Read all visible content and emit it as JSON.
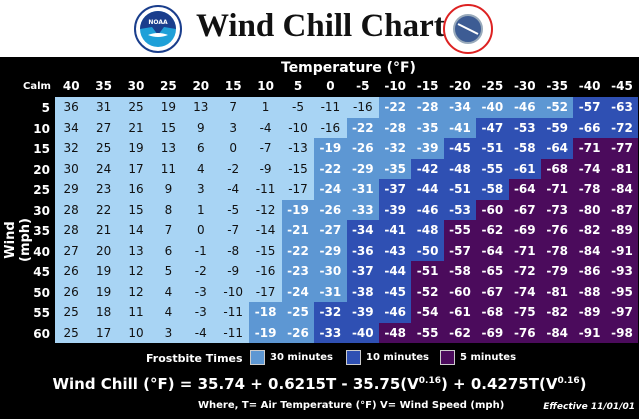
{
  "header": {
    "title": "Wind Chill Chart",
    "logos": [
      "NOAA",
      "National Weather Service"
    ]
  },
  "chart_data": {
    "type": "table",
    "title": "Temperature (°F)",
    "xlabel": "Temperature (°F)",
    "ylabel": "Wind (mph)",
    "corner_label": "Calm",
    "temperatures": [
      40,
      35,
      30,
      25,
      20,
      15,
      10,
      5,
      0,
      -5,
      -10,
      -15,
      -20,
      -25,
      -30,
      -35,
      -40,
      -45
    ],
    "winds": [
      5,
      10,
      15,
      20,
      25,
      30,
      35,
      40,
      45,
      50,
      55,
      60
    ],
    "values": [
      [
        36,
        31,
        25,
        19,
        13,
        7,
        1,
        -5,
        -11,
        -16,
        -22,
        -28,
        -34,
        -40,
        -46,
        -52,
        -57,
        -63
      ],
      [
        34,
        27,
        21,
        15,
        9,
        3,
        -4,
        -10,
        -16,
        -22,
        -28,
        -35,
        -41,
        -47,
        -53,
        -59,
        -66,
        -72
      ],
      [
        32,
        25,
        19,
        13,
        6,
        0,
        -7,
        -13,
        -19,
        -26,
        -32,
        -39,
        -45,
        -51,
        -58,
        -64,
        -71,
        -77
      ],
      [
        30,
        24,
        17,
        11,
        4,
        -2,
        -9,
        -15,
        -22,
        -29,
        -35,
        -42,
        -48,
        -55,
        -61,
        -68,
        -74,
        -81
      ],
      [
        29,
        23,
        16,
        9,
        3,
        -4,
        -11,
        -17,
        -24,
        -31,
        -37,
        -44,
        -51,
        -58,
        -64,
        -71,
        -78,
        -84
      ],
      [
        28,
        22,
        15,
        8,
        1,
        -5,
        -12,
        -19,
        -26,
        -33,
        -39,
        -46,
        -53,
        -60,
        -67,
        -73,
        -80,
        -87
      ],
      [
        28,
        21,
        14,
        7,
        0,
        -7,
        -14,
        -21,
        -27,
        -34,
        -41,
        -48,
        -55,
        -62,
        -69,
        -76,
        -82,
        -89
      ],
      [
        27,
        20,
        13,
        6,
        -1,
        -8,
        -15,
        -22,
        -29,
        -36,
        -43,
        -50,
        -57,
        -64,
        -71,
        -78,
        -84,
        -91
      ],
      [
        26,
        19,
        12,
        5,
        -2,
        -9,
        -16,
        -23,
        -30,
        -37,
        -44,
        -51,
        -58,
        -65,
        -72,
        -79,
        -86,
        -93
      ],
      [
        26,
        19,
        12,
        4,
        -3,
        -10,
        -17,
        -24,
        -31,
        -38,
        -45,
        -52,
        -60,
        -67,
        -74,
        -81,
        -88,
        -95
      ],
      [
        25,
        18,
        11,
        4,
        -3,
        -11,
        -18,
        -25,
        -32,
        -39,
        -46,
        -54,
        -61,
        -68,
        -75,
        -82,
        -89,
        -97
      ],
      [
        25,
        17,
        10,
        3,
        -4,
        -11,
        -19,
        -26,
        -33,
        -40,
        -48,
        -55,
        -62,
        -69,
        -76,
        -84,
        -91,
        -98
      ]
    ],
    "frostbite_zone_boundaries_by_row": [
      [
        9,
        15,
        17
      ],
      [
        8,
        12,
        17
      ],
      [
        7,
        11,
        15
      ],
      [
        7,
        10,
        14
      ],
      [
        7,
        9,
        13
      ],
      [
        6,
        9,
        12
      ],
      [
        6,
        8,
        11
      ],
      [
        6,
        8,
        11
      ],
      [
        6,
        8,
        10
      ],
      [
        6,
        8,
        10
      ],
      [
        5,
        7,
        10
      ],
      [
        5,
        7,
        9
      ]
    ],
    "zone_colors": [
      "#a8d4f4",
      "#5d97d3",
      "#2f50b3",
      "#4b0b5c"
    ]
  },
  "legend": {
    "title": "Frostbite Times",
    "items": [
      {
        "label": "30 minutes",
        "color": "#5d97d3"
      },
      {
        "label": "10 minutes",
        "color": "#2f50b3"
      },
      {
        "label": "5 minutes",
        "color": "#4b0b5c"
      }
    ]
  },
  "formula": {
    "lhs": "Wind Chill (°F) = 35.74 + 0.6215T - 35.75(V",
    "exp1": "0.16",
    "mid": ") + 0.4275T(V",
    "exp2": "0.16",
    "end": ")"
  },
  "where": "Where, T= Air Temperature (°F)   V= Wind Speed (mph)",
  "effective": "Effective 11/01/01"
}
